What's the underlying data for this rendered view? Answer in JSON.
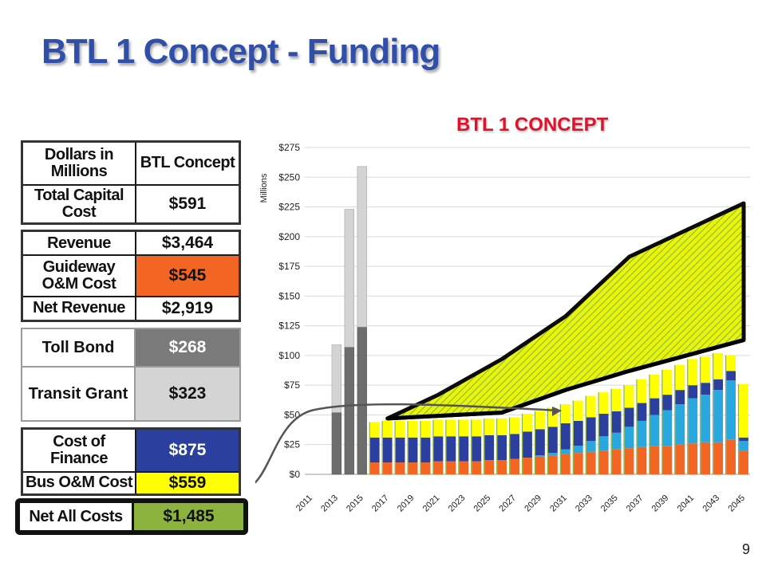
{
  "slide": {
    "title": "BTL 1 Concept - Funding",
    "page_number": "9"
  },
  "tables": {
    "t1": {
      "h1": "Dollars in Millions",
      "h2": "BTL Concept",
      "r1_label": "Total Capital Cost",
      "r1_value": "$591"
    },
    "t2": {
      "r1_label": "Revenue",
      "r1_value": "$3,464",
      "r2_label": "Guideway O&M Cost",
      "r2_value": "$545",
      "r3_label": "Net Revenue",
      "r3_value": "$2,919"
    },
    "t3": {
      "r1_label": "Toll Bond",
      "r1_value": "$268",
      "r2_label": "Transit Grant",
      "r2_value": "$323"
    },
    "t4": {
      "r1_label": "Cost of Finance",
      "r1_value": "$875",
      "r2_label": "Bus O&M Cost",
      "r2_value": "$559"
    },
    "t5": {
      "r1_label": "Net All Costs",
      "r1_value": "$1,485"
    }
  },
  "colors": {
    "guideway_om": "#f26522",
    "cost_of_finance": "#2b3f9e",
    "bus_om": "#ffff00",
    "net_all_costs": "#8db33f",
    "toll_bond": "#7a7a7a",
    "transit_grant": "#d4d4d4",
    "chart_title": "#e0112b",
    "title": "#2f4fa8"
  },
  "chart_data": {
    "type": "bar",
    "title": "BTL 1  CONCEPT",
    "ylabel": "Millions",
    "ylim": [
      0,
      275
    ],
    "yticks": [
      "$0",
      "$25",
      "$50",
      "$75",
      "$100",
      "$125",
      "$150",
      "$175",
      "$200",
      "$225",
      "$250",
      "$275"
    ],
    "xtick_labels": [
      "2011",
      "2013",
      "2015",
      "2017",
      "2019",
      "2021",
      "2023",
      "2025",
      "2027",
      "2029",
      "2031",
      "2033",
      "2035",
      "2037",
      "2039",
      "2041",
      "2043",
      "2045"
    ],
    "years": [
      2013,
      2014,
      2015,
      2016,
      2017,
      2018,
      2019,
      2020,
      2021,
      2022,
      2023,
      2024,
      2025,
      2026,
      2027,
      2028,
      2029,
      2030,
      2031,
      2032,
      2033,
      2034,
      2035,
      2036,
      2037,
      2038,
      2039,
      2040,
      2041,
      2042,
      2043,
      2044,
      2045
    ],
    "capital_bars": {
      "years": [
        2013,
        2014,
        2015
      ],
      "dark": [
        52,
        107,
        124
      ],
      "light": [
        57,
        116,
        135
      ]
    },
    "stacked_series": {
      "years": [
        2016,
        2017,
        2018,
        2019,
        2020,
        2021,
        2022,
        2023,
        2024,
        2025,
        2026,
        2027,
        2028,
        2029,
        2030,
        2031,
        2032,
        2033,
        2034,
        2035,
        2036,
        2037,
        2038,
        2039,
        2040,
        2041,
        2042,
        2043,
        2044,
        2045
      ],
      "orange": [
        10,
        10,
        10,
        10,
        10,
        11,
        11,
        11,
        11,
        12,
        12,
        13,
        14,
        15,
        16,
        17,
        18,
        19,
        20,
        21,
        22,
        23,
        24,
        24,
        25,
        26,
        27,
        27,
        29,
        20
      ],
      "light_blue": [
        0,
        0,
        0,
        0,
        0,
        0,
        0,
        0,
        0,
        0,
        0,
        0,
        0,
        1,
        2,
        4,
        6,
        9,
        12,
        14,
        18,
        22,
        26,
        30,
        34,
        38,
        40,
        44,
        50,
        8
      ],
      "navy": [
        21,
        21,
        21,
        21,
        21,
        21,
        21,
        21,
        21,
        21,
        21,
        21,
        22,
        22,
        22,
        22,
        21,
        20,
        19,
        18,
        16,
        15,
        14,
        13,
        12,
        11,
        10,
        9,
        8,
        3
      ],
      "yellow": [
        13,
        14,
        14,
        14,
        14,
        14,
        14,
        14,
        14,
        14,
        14,
        14,
        15,
        15,
        16,
        16,
        17,
        18,
        18,
        19,
        19,
        20,
        20,
        21,
        21,
        22,
        22,
        22,
        13,
        45
      ],
      "green_top": [
        0,
        0,
        0,
        0,
        0,
        0,
        0,
        0,
        0,
        0,
        0,
        0,
        0,
        0,
        0,
        0,
        0,
        0,
        0,
        0,
        0,
        0,
        0,
        0,
        0,
        0,
        0,
        0,
        0,
        0
      ]
    },
    "revenue_polygon": [
      [
        2017,
        47
      ],
      [
        2021,
        67
      ],
      [
        2026,
        97
      ],
      [
        2031,
        133
      ],
      [
        2036,
        183
      ],
      [
        2045,
        228
      ]
    ],
    "cost_polyline": [
      [
        2017,
        47
      ],
      [
        2026,
        52
      ],
      [
        2031,
        71
      ],
      [
        2036,
        87
      ],
      [
        2045,
        113
      ]
    ]
  }
}
